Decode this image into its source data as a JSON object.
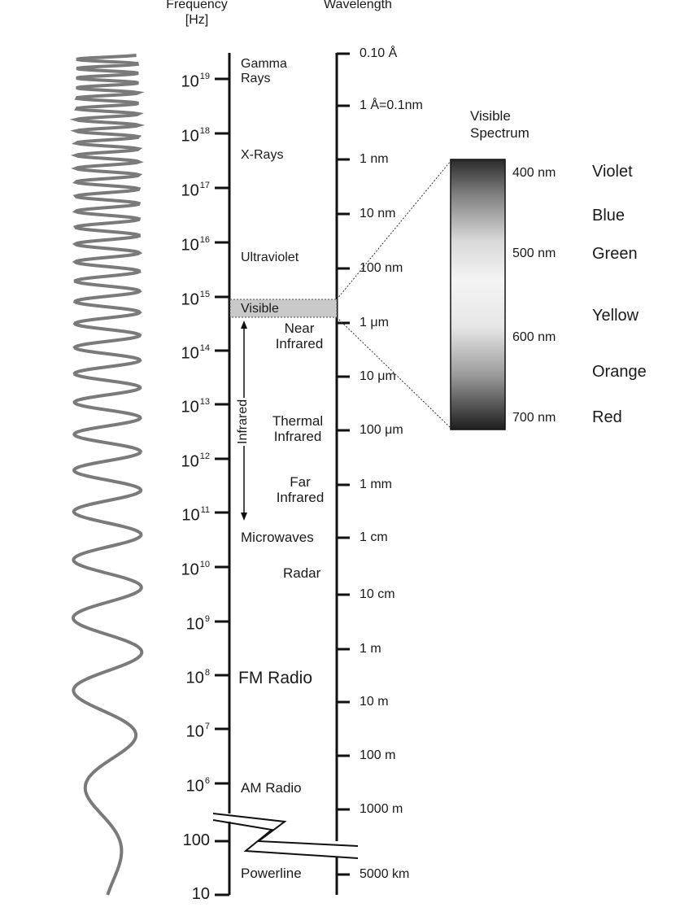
{
  "headers": {
    "frequency": "Frequency",
    "frequency_unit": "[Hz]",
    "wavelength": "Wavelength"
  },
  "frequency_ticks": [
    {
      "base": "10",
      "exp": "19"
    },
    {
      "base": "10",
      "exp": "18"
    },
    {
      "base": "10",
      "exp": "17"
    },
    {
      "base": "10",
      "exp": "16"
    },
    {
      "base": "10",
      "exp": "15"
    },
    {
      "base": "10",
      "exp": "14"
    },
    {
      "base": "10",
      "exp": "13"
    },
    {
      "base": "10",
      "exp": "12"
    },
    {
      "base": "10",
      "exp": "11"
    },
    {
      "base": "10",
      "exp": "10"
    },
    {
      "base": "10",
      "exp": "9"
    },
    {
      "base": "10",
      "exp": "8"
    },
    {
      "base": "10",
      "exp": "7"
    },
    {
      "base": "10",
      "exp": "6"
    },
    {
      "base": "100",
      "exp": ""
    },
    {
      "base": "10",
      "exp": ""
    }
  ],
  "wavelength_ticks": [
    "0.10 Å",
    "1 Å=0.1nm",
    "1 nm",
    "10 nm",
    "100 nm",
    "1 μm",
    "10 μm",
    "100 μm",
    "1 mm",
    "1 cm",
    "10 cm",
    "1 m",
    "10 m",
    "100 m",
    "1000 m",
    "5000 km"
  ],
  "bands": {
    "gamma_1": "Gamma",
    "gamma_2": "Rays",
    "xrays": "X-Rays",
    "ultraviolet": "Ultraviolet",
    "visible": "Visible",
    "near_ir_1": "Near",
    "near_ir_2": "Infrared",
    "infrared": "Infrared",
    "thermal_ir_1": "Thermal",
    "thermal_ir_2": "Infrared",
    "far_ir_1": "Far",
    "far_ir_2": "Infrared",
    "microwaves": "Microwaves",
    "radar": "Radar",
    "fm_radio": "FM Radio",
    "am_radio": "AM Radio",
    "powerline": "Powerline"
  },
  "visible_spectrum": {
    "title_1": "Visible",
    "title_2": "Spectrum",
    "nm_labels": [
      "400 nm",
      "500 nm",
      "600 nm",
      "700 nm"
    ],
    "colors": [
      "Violet",
      "Blue",
      "Green",
      "Yellow",
      "Orange",
      "Red"
    ]
  }
}
